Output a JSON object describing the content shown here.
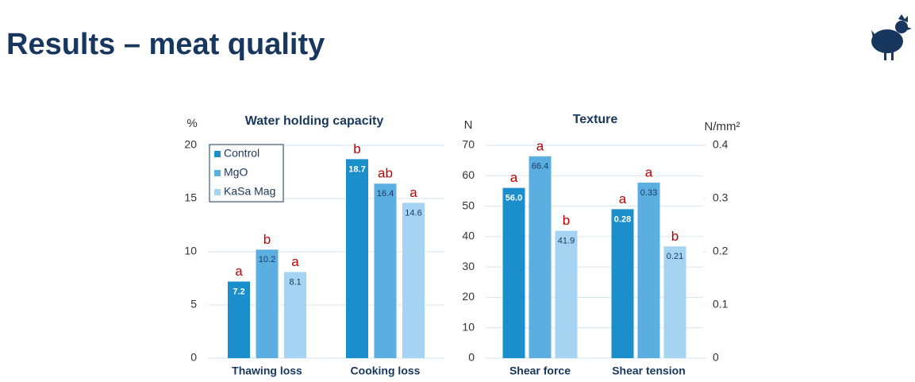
{
  "header": {
    "title": "Results – meat quality"
  },
  "chart_data": [
    {
      "type": "bar",
      "title": "Water holding capacity",
      "ylabel": "%",
      "categories": [
        "Thawing loss",
        "Cooking loss"
      ],
      "series": [
        {
          "name": "Control",
          "color": "#1a8fcc",
          "values": [
            7.2,
            18.7
          ],
          "letters": [
            "a",
            "b"
          ]
        },
        {
          "name": "MgO",
          "color": "#5aaee0",
          "values": [
            10.2,
            16.4
          ],
          "letters": [
            "b",
            "ab"
          ]
        },
        {
          "name": "KaSa Mag",
          "color": "#a4d4f2",
          "values": [
            8.1,
            14.6
          ],
          "letters": [
            "a",
            "a"
          ]
        }
      ],
      "ylim": [
        0,
        20
      ],
      "yticks": [
        0,
        5,
        10,
        15,
        20
      ],
      "grid": true,
      "legend": "upper left"
    },
    {
      "type": "bar",
      "title": "Texture",
      "ylabel": "N",
      "y2label": "N/mm²",
      "categories": [
        "Shear force",
        "Shear tension"
      ],
      "category_axes": [
        "y",
        "y2"
      ],
      "series": [
        {
          "color": "#1a8fcc",
          "values": [
            56.0,
            0.28
          ],
          "value_labels": [
            "56.0",
            "0.28"
          ],
          "letters": [
            "a",
            "a"
          ]
        },
        {
          "color": "#5aaee0",
          "values": [
            66.4,
            0.33
          ],
          "letters": [
            "a",
            "a"
          ]
        },
        {
          "color": "#a4d4f2",
          "values": [
            41.9,
            0.21
          ],
          "letters": [
            "b",
            "b"
          ]
        }
      ],
      "ylim": [
        0,
        70
      ],
      "yticks": [
        0,
        10,
        20,
        30,
        40,
        50,
        60,
        70
      ],
      "y2lim": [
        0,
        0.4
      ],
      "y2ticks": [
        0,
        0.1,
        0.2,
        0.3,
        0.4
      ],
      "grid": true
    }
  ]
}
